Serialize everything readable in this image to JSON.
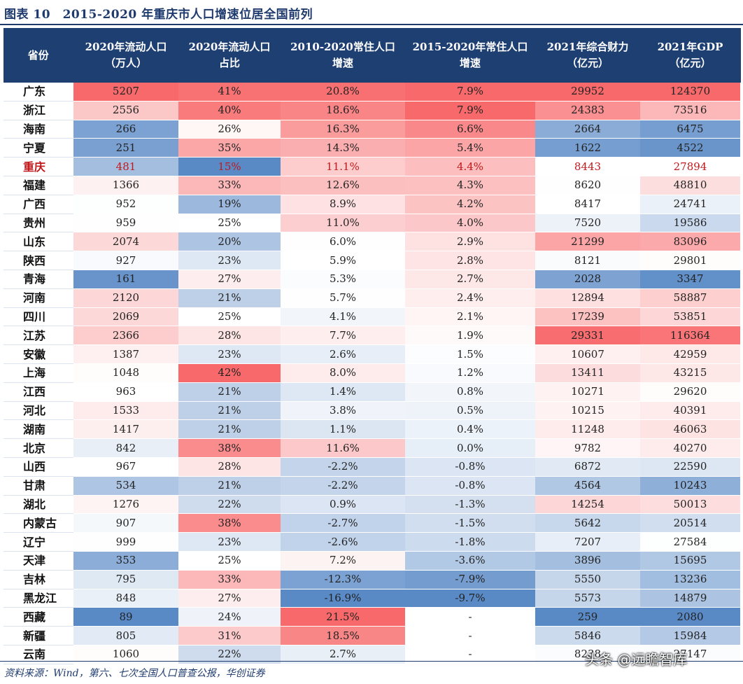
{
  "title": "图表 10　2015-2020 年重庆市人口增速位居全国前列",
  "columns": [
    "省份",
    "2020年流动人口\n（万人）",
    "2020年流动人口\n占比",
    "2010-2020常住人口\n增速",
    "2015-2020年常住人口\n增速",
    "2021年综合财力\n（亿元）",
    "2021年GDP\n（亿元）"
  ],
  "highlight_row": "重庆",
  "rows": [
    [
      "广东",
      "5207",
      "41%",
      "20.8%",
      "7.9%",
      "29952",
      "124370"
    ],
    [
      "浙江",
      "2556",
      "40%",
      "18.6%",
      "7.9%",
      "24383",
      "73516"
    ],
    [
      "海南",
      "266",
      "26%",
      "16.3%",
      "6.6%",
      "2664",
      "6475"
    ],
    [
      "宁夏",
      "251",
      "35%",
      "14.3%",
      "5.4%",
      "1622",
      "4522"
    ],
    [
      "重庆",
      "481",
      "15%",
      "11.1%",
      "4.4%",
      "8443",
      "27894"
    ],
    [
      "福建",
      "1366",
      "33%",
      "12.6%",
      "4.3%",
      "8620",
      "48810"
    ],
    [
      "广西",
      "952",
      "19%",
      "8.9%",
      "4.2%",
      "8417",
      "24741"
    ],
    [
      "贵州",
      "959",
      "25%",
      "11.0%",
      "4.0%",
      "7520",
      "19586"
    ],
    [
      "山东",
      "2074",
      "20%",
      "6.0%",
      "2.9%",
      "21299",
      "83096"
    ],
    [
      "陕西",
      "927",
      "23%",
      "5.9%",
      "2.8%",
      "8121",
      "29801"
    ],
    [
      "青海",
      "161",
      "27%",
      "5.3%",
      "2.7%",
      "2028",
      "3347"
    ],
    [
      "河南",
      "2120",
      "21%",
      "5.7%",
      "2.4%",
      "12894",
      "58887"
    ],
    [
      "四川",
      "2069",
      "25%",
      "4.1%",
      "2.1%",
      "17239",
      "53851"
    ],
    [
      "江苏",
      "2366",
      "28%",
      "7.7%",
      "1.9%",
      "29331",
      "116364"
    ],
    [
      "安徽",
      "1387",
      "23%",
      "2.6%",
      "1.5%",
      "10607",
      "42959"
    ],
    [
      "上海",
      "1048",
      "42%",
      "8.0%",
      "1.2%",
      "13411",
      "43215"
    ],
    [
      "江西",
      "963",
      "21%",
      "1.4%",
      "0.8%",
      "10271",
      "29620"
    ],
    [
      "河北",
      "1533",
      "21%",
      "3.8%",
      "0.5%",
      "10215",
      "40391"
    ],
    [
      "湖南",
      "1417",
      "21%",
      "1.1%",
      "0.4%",
      "11248",
      "46063"
    ],
    [
      "北京",
      "842",
      "38%",
      "11.6%",
      "0.0%",
      "9782",
      "40270"
    ],
    [
      "山西",
      "967",
      "28%",
      "-2.2%",
      "-0.8%",
      "6872",
      "22590"
    ],
    [
      "甘肃",
      "534",
      "21%",
      "-2.2%",
      "-0.8%",
      "4564",
      "10243"
    ],
    [
      "湖北",
      "1276",
      "22%",
      "0.9%",
      "-1.3%",
      "14254",
      "50013"
    ],
    [
      "内蒙古",
      "907",
      "38%",
      "-2.7%",
      "-1.5%",
      "5642",
      "20514"
    ],
    [
      "辽宁",
      "999",
      "23%",
      "-2.6%",
      "-1.8%",
      "7207",
      "27584"
    ],
    [
      "天津",
      "353",
      "25%",
      "7.2%",
      "-3.6%",
      "3896",
      "15695"
    ],
    [
      "吉林",
      "795",
      "33%",
      "-12.3%",
      "-7.9%",
      "5550",
      "13236"
    ],
    [
      "黑龙江",
      "848",
      "27%",
      "-16.9%",
      "-9.7%",
      "5573",
      "14879"
    ],
    [
      "西藏",
      "89",
      "24%",
      "21.5%",
      "-",
      "259",
      "2080"
    ],
    [
      "新疆",
      "805",
      "31%",
      "18.5%",
      "-",
      "5846",
      "15984"
    ],
    [
      "云南",
      "1060",
      "22%",
      "2.7%",
      "-",
      "8238",
      "27147"
    ]
  ],
  "source": "资料来源：Wind，第六、七次全国人口普查公报，华创证券",
  "watermark": "头条 @远瞻智库",
  "colors": {
    "header_bg": "#1e3f72",
    "high": "#f8696b",
    "mid": "#ffffff",
    "low": "#5a8ac6",
    "highlight_text": "#c0191c"
  }
}
